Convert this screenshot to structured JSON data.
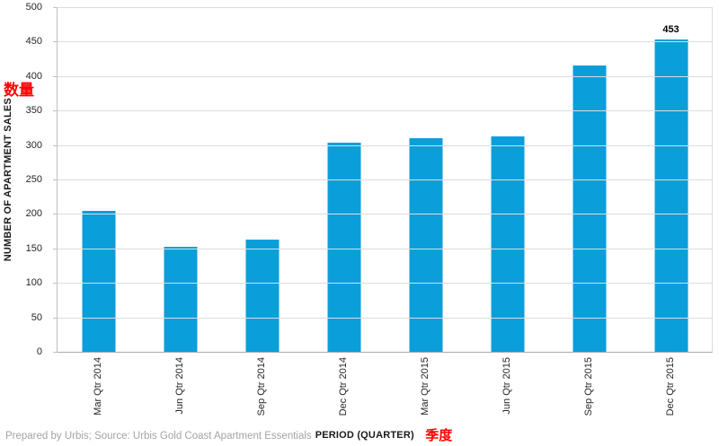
{
  "chart_data": {
    "type": "bar",
    "categories": [
      "Mar Qtr 2014",
      "Jun Qtr 2014",
      "Sep Qtr 2014",
      "Dec Qtr 2014",
      "Mar Qtr 2015",
      "Jun Qtr 2015",
      "Sep Qtr 2015",
      "Dec Qtr 2015"
    ],
    "values": [
      204,
      153,
      163,
      303,
      310,
      313,
      415,
      453
    ],
    "data_labels": [
      "",
      "",
      "",
      "",
      "",
      "",
      "",
      "453"
    ],
    "title": "",
    "xlabel": "PERIOD (QUARTER)",
    "xlabel_cn": "季度",
    "ylabel": "NUMBER OF APARTMENT SALES",
    "ylabel_cn": "数量",
    "ylim": [
      0,
      500
    ],
    "yticks": [
      0,
      50,
      100,
      150,
      200,
      250,
      300,
      350,
      400,
      450,
      500
    ],
    "grid": "horizontal",
    "legend": "none",
    "bar_color": "#0a9edb"
  },
  "colors": {
    "bar": "#0a9edb",
    "gridline": "#dcdcdc",
    "axis": "#bfbfbf",
    "tick_text": "#262626",
    "annotation_red": "#ff0000",
    "footer_text": "#a3a3a3"
  },
  "footer": {
    "text": "Prepared by Urbis; Source: Urbis Gold Coast Apartment Essentials"
  }
}
